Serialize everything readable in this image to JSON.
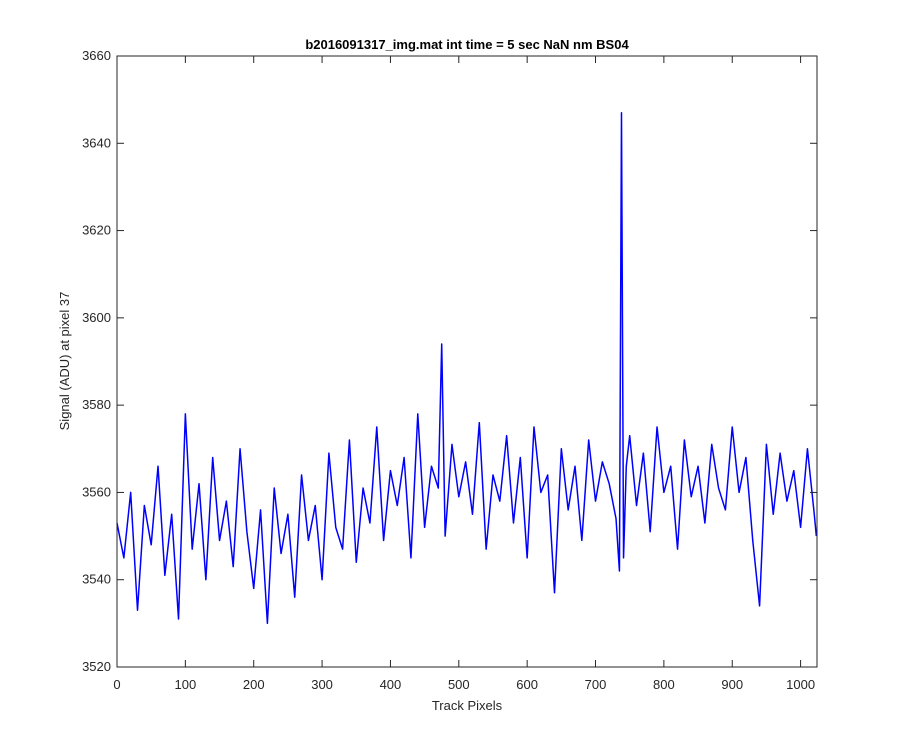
{
  "chart_data": {
    "type": "line",
    "title": "b2016091317_img.mat int time = 5 sec  NaN nm BS04",
    "xlabel": "Track Pixels",
    "ylabel": "Signal (ADU) at pixel 37",
    "xlim": [
      0,
      1024
    ],
    "ylim": [
      3520,
      3660
    ],
    "xticks": [
      0,
      100,
      200,
      300,
      400,
      500,
      600,
      700,
      800,
      900,
      1000
    ],
    "yticks": [
      3520,
      3540,
      3560,
      3580,
      3600,
      3620,
      3640,
      3660
    ],
    "grid": false,
    "legend": "none",
    "series": [
      {
        "color": "#0000ff",
        "x": [
          0,
          10,
          20,
          30,
          40,
          50,
          60,
          70,
          80,
          90,
          100,
          110,
          120,
          130,
          140,
          150,
          160,
          170,
          180,
          190,
          200,
          210,
          220,
          230,
          240,
          250,
          260,
          270,
          280,
          290,
          300,
          310,
          320,
          330,
          340,
          350,
          360,
          370,
          380,
          390,
          400,
          410,
          420,
          430,
          440,
          450,
          460,
          470,
          475,
          480,
          490,
          500,
          510,
          520,
          530,
          540,
          550,
          560,
          570,
          580,
          590,
          600,
          610,
          620,
          630,
          640,
          650,
          660,
          670,
          680,
          690,
          700,
          710,
          720,
          730,
          735,
          738,
          741,
          745,
          750,
          760,
          770,
          780,
          790,
          800,
          810,
          820,
          830,
          840,
          850,
          860,
          870,
          880,
          890,
          900,
          910,
          920,
          930,
          940,
          950,
          960,
          970,
          980,
          990,
          1000,
          1010,
          1020,
          1023
        ],
        "values": [
          3553,
          3545,
          3560,
          3533,
          3557,
          3548,
          3566,
          3541,
          3555,
          3531,
          3578,
          3547,
          3562,
          3540,
          3568,
          3549,
          3558,
          3543,
          3570,
          3551,
          3538,
          3556,
          3530,
          3561,
          3546,
          3555,
          3536,
          3564,
          3549,
          3557,
          3540,
          3569,
          3552,
          3547,
          3572,
          3544,
          3561,
          3553,
          3575,
          3549,
          3565,
          3557,
          3568,
          3545,
          3578,
          3552,
          3566,
          3561,
          3594,
          3550,
          3571,
          3559,
          3567,
          3555,
          3576,
          3547,
          3564,
          3558,
          3573,
          3553,
          3568,
          3545,
          3575,
          3560,
          3564,
          3537,
          3570,
          3556,
          3566,
          3549,
          3572,
          3558,
          3567,
          3562,
          3554,
          3542,
          3647,
          3545,
          3566,
          3573,
          3557,
          3569,
          3551,
          3575,
          3560,
          3566,
          3547,
          3572,
          3559,
          3566,
          3553,
          3571,
          3561,
          3556,
          3575,
          3560,
          3568,
          3549,
          3534,
          3571,
          3555,
          3569,
          3558,
          3565,
          3552,
          3570,
          3555,
          3550
        ]
      }
    ]
  }
}
